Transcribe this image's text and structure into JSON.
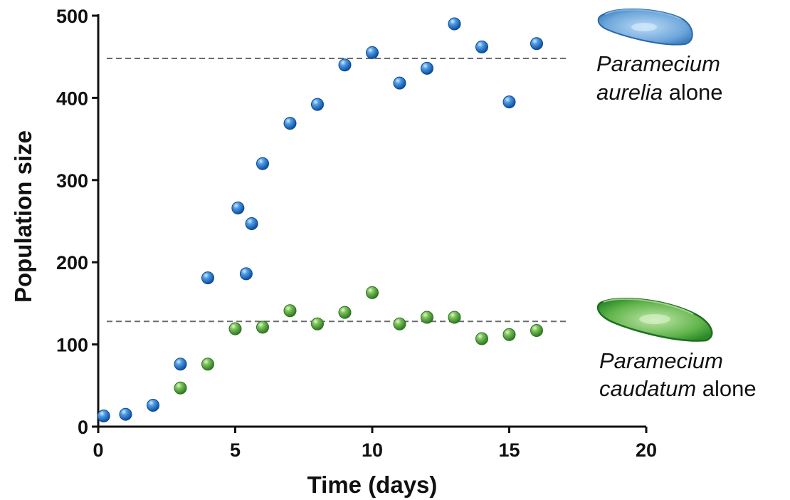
{
  "chart_data": {
    "type": "scatter",
    "xlabel": "Time (days)",
    "ylabel": "Population size",
    "xlim": [
      0,
      20
    ],
    "ylim": [
      0,
      500
    ],
    "x_ticks": [
      0,
      5,
      10,
      15,
      20
    ],
    "y_ticks": [
      0,
      100,
      200,
      300,
      400,
      500
    ],
    "grid": false,
    "series": [
      {
        "name_italic": "Paramecium",
        "name_italic2": "aurelia",
        "name_rest": "alone",
        "color": "#1f6fc4",
        "carrying_capacity": 448,
        "points": [
          [
            0.2,
            13
          ],
          [
            1,
            15
          ],
          [
            2,
            26
          ],
          [
            3,
            76
          ],
          [
            4,
            181
          ],
          [
            5.1,
            266
          ],
          [
            5.4,
            186
          ],
          [
            5.6,
            247
          ],
          [
            6,
            320
          ],
          [
            7,
            369
          ],
          [
            8,
            392
          ],
          [
            9,
            440
          ],
          [
            10,
            455
          ],
          [
            11,
            418
          ],
          [
            12,
            436
          ],
          [
            13,
            490
          ],
          [
            14,
            462
          ],
          [
            15,
            395
          ],
          [
            16,
            466
          ]
        ]
      },
      {
        "name_italic": "Paramecium",
        "name_italic2": "caudatum",
        "name_rest": "alone",
        "color": "#4a9e3a",
        "carrying_capacity": 128,
        "points": [
          [
            3,
            47
          ],
          [
            4,
            76
          ],
          [
            5,
            119
          ],
          [
            6,
            121
          ],
          [
            7,
            141
          ],
          [
            8,
            125
          ],
          [
            9,
            139
          ],
          [
            10,
            163
          ],
          [
            11,
            125
          ],
          [
            12,
            133
          ],
          [
            13,
            133
          ],
          [
            14,
            107
          ],
          [
            15,
            112
          ],
          [
            16,
            117
          ]
        ]
      }
    ]
  }
}
